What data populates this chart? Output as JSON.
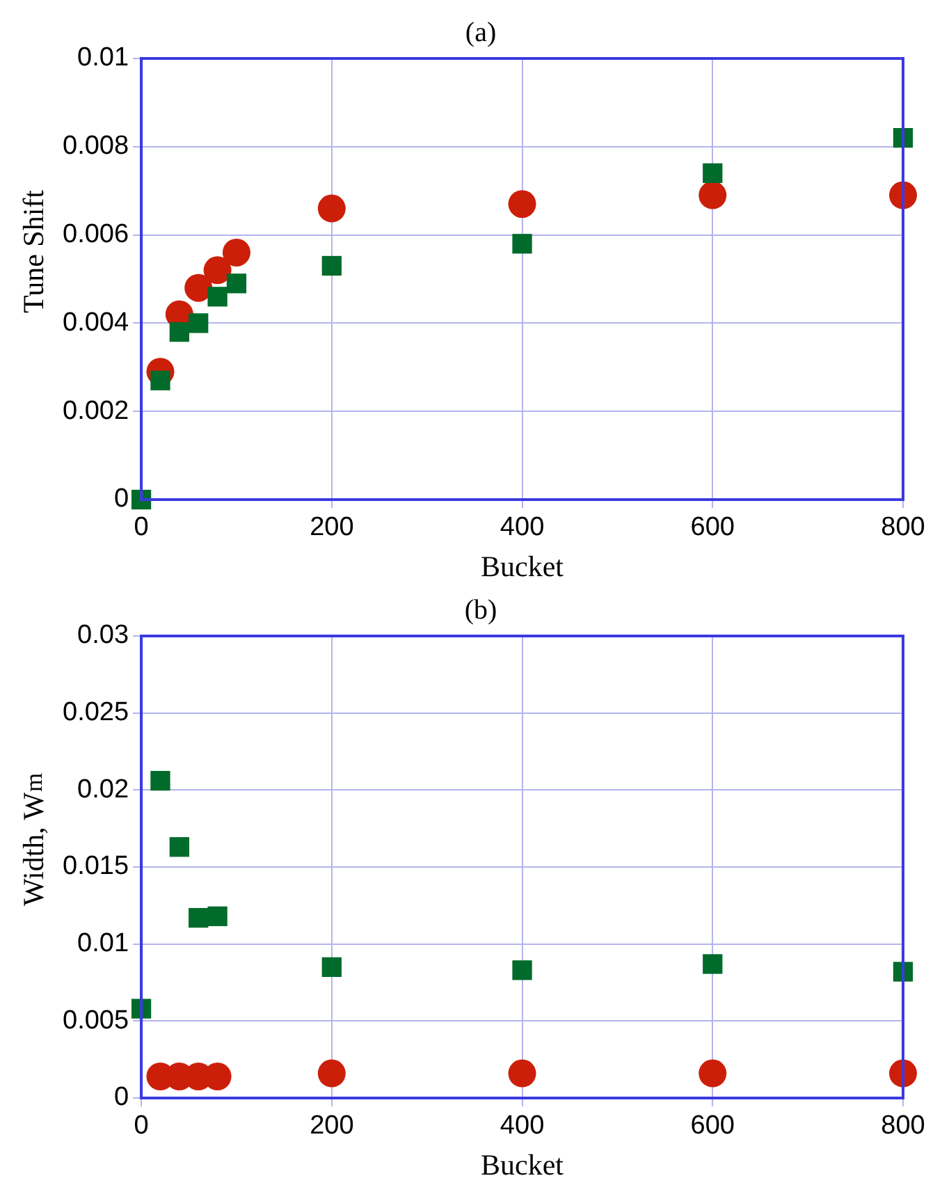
{
  "chart_data": [
    {
      "type": "scatter",
      "title": "(a)",
      "xlabel": "Bucket",
      "ylabel": "Tune Shift",
      "xlim": [
        0,
        800
      ],
      "xticks": [
        0,
        200,
        400,
        600,
        800
      ],
      "ylim": [
        0,
        0.01
      ],
      "yticks": [
        0,
        0.002,
        0.004,
        0.006,
        0.008,
        0.01
      ],
      "grid": true,
      "legend": false,
      "series": [
        {
          "color": "#cc1f0a",
          "marker": "circle",
          "x": [
            20,
            40,
            60,
            80,
            100,
            200,
            400,
            600,
            800
          ],
          "values": [
            0.0029,
            0.0042,
            0.0048,
            0.0052,
            0.0056,
            0.0066,
            0.0067,
            0.0069,
            0.0069
          ]
        },
        {
          "color": "#006b2a",
          "marker": "square",
          "x": [
            0,
            20,
            40,
            60,
            80,
            100,
            200,
            400,
            600,
            800
          ],
          "values": [
            0,
            0.0027,
            0.0038,
            0.004,
            0.0046,
            0.0049,
            0.0053,
            0.0058,
            0.0074,
            0.0082
          ]
        }
      ]
    },
    {
      "type": "scatter",
      "title": "(b)",
      "xlabel": "Bucket",
      "ylabel": "Width, W$_{m}$",
      "xlim": [
        0,
        800
      ],
      "xticks": [
        0,
        200,
        400,
        600,
        800
      ],
      "ylim": [
        0,
        0.03
      ],
      "yticks": [
        0,
        0.005,
        0.01,
        0.015,
        0.02,
        0.025,
        0.03
      ],
      "grid": true,
      "legend": false,
      "series": [
        {
          "color": "#cc1f0a",
          "marker": "circle",
          "x": [
            20,
            40,
            60,
            80,
            200,
            400,
            600,
            800
          ],
          "values": [
            0.0014,
            0.0014,
            0.0014,
            0.0014,
            0.0016,
            0.0016,
            0.0016,
            0.0016
          ]
        },
        {
          "color": "#006b2a",
          "marker": "square",
          "x": [
            0,
            20,
            40,
            60,
            80,
            200,
            400,
            600,
            800
          ],
          "values": [
            0.0058,
            0.0206,
            0.0163,
            0.0117,
            0.0118,
            0.0085,
            0.0083,
            0.0087,
            0.0082
          ]
        }
      ]
    }
  ]
}
